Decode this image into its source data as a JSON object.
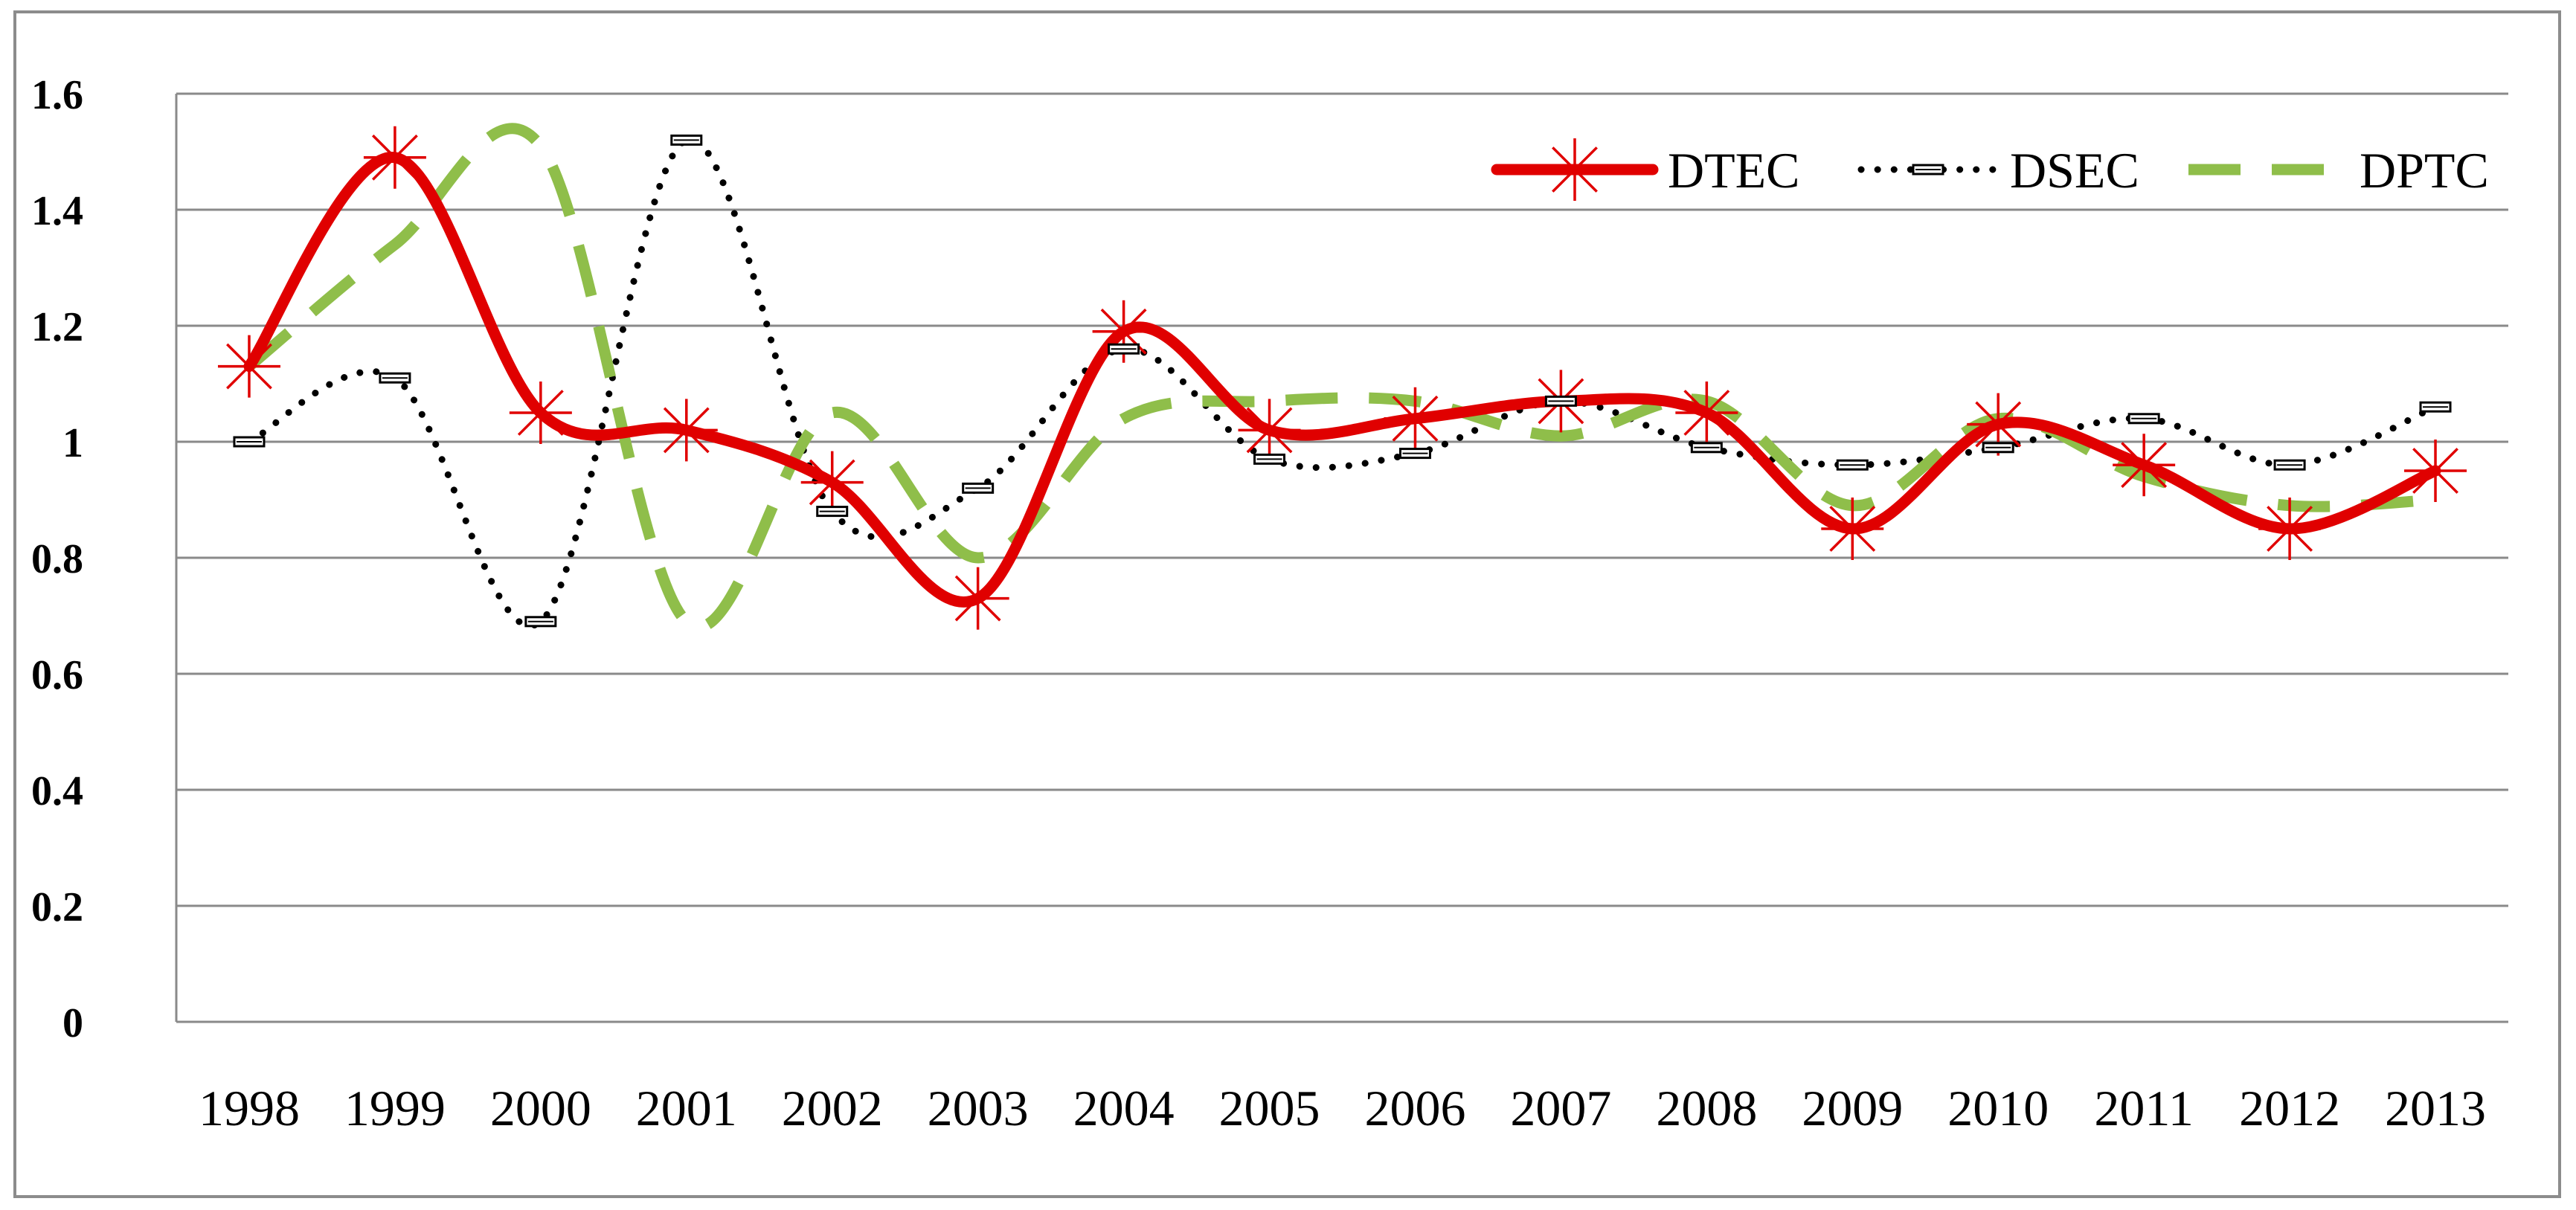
{
  "chart_data": {
    "type": "line",
    "title": "",
    "xlabel": "",
    "ylabel": "",
    "categories": [
      "1998",
      "1999",
      "2000",
      "2001",
      "2002",
      "2003",
      "2004",
      "2005",
      "2006",
      "2007",
      "2008",
      "2009",
      "2010",
      "2011",
      "2012",
      "2013"
    ],
    "ylim": [
      0,
      1.6
    ],
    "yticks": [
      "0",
      "0.2",
      "0.4",
      "0.6",
      "0.8",
      "1",
      "1.2",
      "1.4",
      "1.6"
    ],
    "grid": true,
    "legend_position": "top-right",
    "series": [
      {
        "name": "DTEC",
        "color": "#e00000",
        "style": "solid",
        "marker": "star",
        "values": [
          1.13,
          1.49,
          1.05,
          1.02,
          0.93,
          0.73,
          1.19,
          1.02,
          1.04,
          1.07,
          1.05,
          0.85,
          1.03,
          0.96,
          0.85,
          0.95
        ]
      },
      {
        "name": "DSEC",
        "color": "#000000",
        "style": "dotted",
        "marker": "square",
        "values": [
          1.0,
          1.11,
          0.69,
          1.52,
          0.88,
          0.92,
          1.16,
          0.97,
          0.98,
          1.07,
          0.99,
          0.96,
          0.99,
          1.04,
          0.96,
          1.06
        ]
      },
      {
        "name": "DPTC",
        "color": "#8fbe4a",
        "style": "dashed",
        "marker": "none",
        "values": [
          1.13,
          1.34,
          1.51,
          0.69,
          1.05,
          0.8,
          1.04,
          1.07,
          1.07,
          1.01,
          1.07,
          0.89,
          1.04,
          0.94,
          0.89,
          0.9
        ]
      }
    ]
  }
}
